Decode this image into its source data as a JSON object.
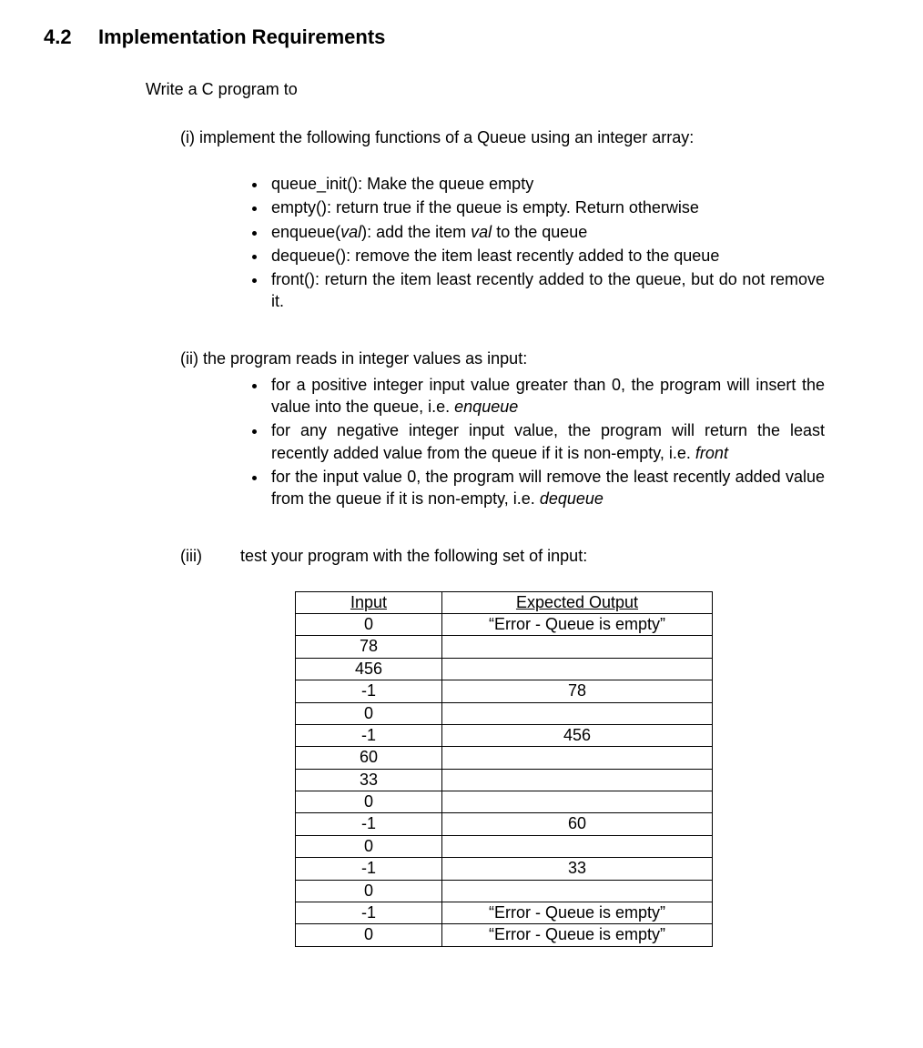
{
  "heading": {
    "number": "4.2",
    "title": "Implementation Requirements"
  },
  "intro": "Write a C program to",
  "sec_i_lead": "(i) implement the following functions of a Queue using an integer array:",
  "funcs": [
    {
      "sig": "queue_init():",
      "after": "  Make the queue empty"
    },
    {
      "sig": "empty():",
      "after": " return true if the queue is empty. Return otherwise"
    },
    {
      "sig_pre": "enqueue(",
      "sig_arg": "val",
      "sig_post": "):",
      "after_pre": " add the item ",
      "after_arg": "val",
      "after_post": " to the queue"
    },
    {
      "sig": "dequeue():",
      "after": " remove the item least recently added to the queue"
    },
    {
      "sig": "front():",
      "after": "  return the item least recently added to the queue, but do not remove it."
    }
  ],
  "sec_ii_lead": "(ii)  the program reads in integer values as input:",
  "behaviors": [
    {
      "text_pre": "for a positive integer input value greater than 0, the program will insert the value into the queue, i.e. ",
      "kw": "enqueue"
    },
    {
      "text_pre": "for any negative integer input value, the program will return the least recently added value from the queue if it is non-empty, i.e.  ",
      "kw": "front"
    },
    {
      "text_pre": "for the input value 0, the program will remove the least recently added value from the queue if it is non-empty, i.e.  ",
      "kw": "dequeue"
    }
  ],
  "sec_iii": {
    "label": "(iii)",
    "text": "test your program with the following set of input:"
  },
  "table": {
    "headers": {
      "input": "Input",
      "output": "Expected Output"
    },
    "rows": [
      {
        "in": "0",
        "out": "“Error - Queue is empty”"
      },
      {
        "in": "78",
        "out": ""
      },
      {
        "in": "456",
        "out": ""
      },
      {
        "in": "-1",
        "out": "78"
      },
      {
        "in": "0",
        "out": ""
      },
      {
        "in": "-1",
        "out": "456"
      },
      {
        "in": "60",
        "out": ""
      },
      {
        "in": "33",
        "out": ""
      },
      {
        "in": "0",
        "out": ""
      },
      {
        "in": "-1",
        "out": "60"
      },
      {
        "in": "0",
        "out": ""
      },
      {
        "in": "-1",
        "out": "33"
      },
      {
        "in": "0",
        "out": ""
      },
      {
        "in": "-1",
        "out": "“Error - Queue is empty”"
      },
      {
        "in": "0",
        "out": "“Error - Queue is empty”"
      }
    ]
  }
}
